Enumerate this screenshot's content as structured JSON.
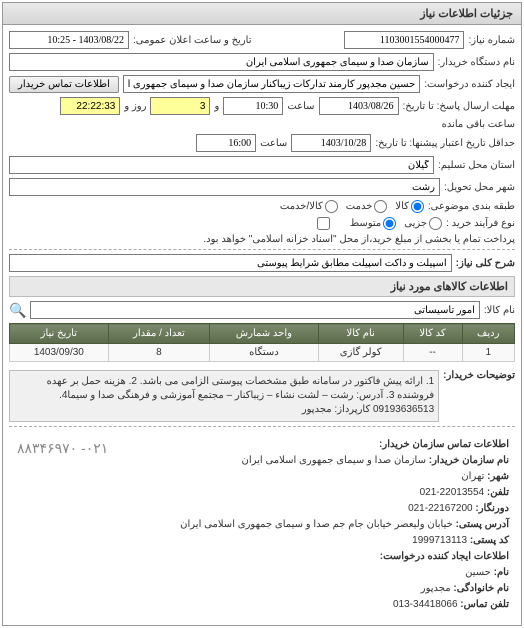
{
  "panel_title": "جزئیات اطلاعات نیاز",
  "request_number_label": "شماره نیاز:",
  "request_number": "1103001554000477",
  "announce_label": "تاریخ و ساعت اعلان عمومی:",
  "announce_datetime": "1403/08/22 - 10:25",
  "buyer_org_label": "نام دستگاه خریدار:",
  "buyer_org": "سازمان صدا و سیمای جمهوری اسلامی ایران",
  "requester_label": "ایجاد کننده درخواست:",
  "requester": "حسین مجدپور کارمند تدارکات زیباکنار سازمان صدا و سیمای جمهوری اسلامی",
  "contact_btn": "اطلاعات تماس خریدار",
  "deadline_label": "مهلت ارسال پاسخ: تا تاریخ:",
  "deadline_date": "1403/08/26",
  "time_label": "ساعت",
  "deadline_time": "10:30",
  "and_label": "و",
  "days_remaining": "3",
  "days_label": "روز و",
  "time_remaining": "22:22:33",
  "remaining_label": "ساعت باقی مانده",
  "validity_label": "حداقل تاریخ اعتبار پیشنها: تا تاریخ:",
  "validity_date": "1403/10/28",
  "validity_time": "16:00",
  "province_label": "استان محل تسلیم:",
  "province": "گیلان",
  "city_label": "شهر محل تحویل:",
  "city": "رشت",
  "budget_label": "طبقه بندی موضوعی:",
  "budget_options": {
    "kala": "کالا",
    "khadamat": "خدمت",
    "kala_khadamat": "کالا/خدمت"
  },
  "process_label": "نوع فرآیند خرید :",
  "process_options": {
    "motavaset": "متوسط",
    "jozi": "جزیی"
  },
  "payment_note": "پرداخت تمام یا بخشی از مبلغ خرید،از محل \"اسناد خزانه اسلامی\" خواهد بود.",
  "payment_checkbox": false,
  "desc_label": "شرح کلی نیاز:",
  "desc": "اسپیلت و داکت اسپیلت مطابق شرایط پیوستی",
  "items_section": "اطلاعات کالاهای مورد نیاز",
  "item_name_label": "نام کالا:",
  "item_name": "امور تاسیساتی",
  "search_icon_title": "جستجو",
  "table": {
    "headers": [
      "ردیف",
      "کد کالا",
      "نام کالا",
      "واحد شمارش",
      "تعداد / مقدار",
      "تاریخ نیاز"
    ],
    "rows": [
      [
        "1",
        "--",
        "کولر گازی",
        "دستگاه",
        "8",
        "1403/09/30"
      ]
    ]
  },
  "notes_label": "توضیحات خریدار:",
  "notes": "1. ارائه پیش فاکتور در سامانه طبق مشخصات پیوستی الزامی می باشد. 2. هزینه حمل بر عهده فروشنده 3. آدرس: رشت – لشت نشاء – زیباکنار – مجتمع آموزشی و فرهنگی صدا و سیما4. 09193636513 کارپرداز: مجدپور",
  "contact_header": "اطلاعات تماس سازمان خریدار:",
  "contact": {
    "org_label": "نام سازمان خریدار:",
    "org": "سازمان صدا و سیمای جمهوری اسلامی ایران",
    "city_label": "شهر:",
    "city": "تهران",
    "tel_label": "تلفن:",
    "tel": "22013554-021",
    "fax_label": "دورنگار:",
    "fax": "22167200-021",
    "addr_label": "آدرس پستی:",
    "addr": "خیابان ولیعصر خیابان جام جم صدا و سیمای جمهوری اسلامی ایران",
    "post_label": "کد پستی:",
    "post": "1999713113"
  },
  "requester_section": "اطلاعات ایجاد کننده درخواست:",
  "req_name_label": "نام:",
  "req_name": "حسین",
  "req_lname_label": "نام خانوادگی:",
  "req_lname": "مجدپور",
  "req_tel_label": "تلفن تماس:",
  "req_tel": "34418066-013",
  "side_phone": "۸۸۳۴۶۹۷۰ -۰۲۱"
}
